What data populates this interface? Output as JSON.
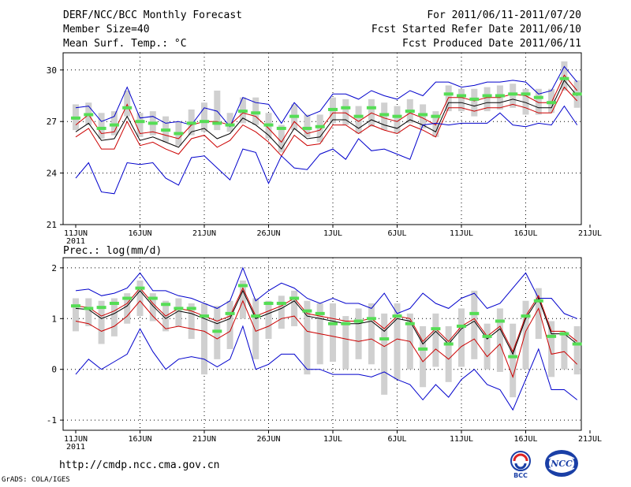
{
  "header": {
    "title": "DERF/NCC/BCC Monthly Forecast",
    "member_size": "Member Size=40",
    "variable_top": "Mean Surf. Temp.: °C",
    "period": "For 2011/06/11-2011/07/20",
    "start_date": "Fcst Started Refer Date 2011/06/10",
    "produced_date": "Fcst Produced Date 2011/06/11"
  },
  "footer": {
    "url": "http://cmdp.ncc.cma.gov.cn",
    "grads": "GrADS: COLA/IGES",
    "logo_bcc": "BCC",
    "logo_ncc": "NCC"
  },
  "colors": {
    "ensemble_mean": "#000000",
    "min_max": "#0000cc",
    "lower": "#cc0000",
    "box": "#d0d0d0",
    "observed": "#55dd55"
  },
  "chart_data": [
    {
      "type": "line",
      "title": "Mean Surf. Temp.: °C",
      "x_tick_labels": [
        "11JUN",
        "16JUN",
        "21JUN",
        "26JUN",
        "1JUL",
        "6JUL",
        "11JUL",
        "16JUL",
        "21JUL"
      ],
      "x_year_label": "2011",
      "ylim": [
        21,
        31
      ],
      "yticks": [
        21,
        24,
        27,
        30
      ],
      "series": [
        {
          "name": "max",
          "values": [
            27.8,
            27.9,
            27.0,
            27.3,
            29.0,
            27.2,
            27.3,
            26.9,
            27.0,
            26.8,
            27.8,
            27.6,
            26.7,
            28.4,
            28.1,
            28.0,
            26.9,
            28.1,
            27.3,
            27.6,
            28.6,
            28.6,
            28.3,
            28.8,
            28.5,
            28.3,
            28.8,
            28.5,
            29.3,
            29.3,
            29.0,
            29.1,
            29.3,
            29.3,
            29.4,
            29.3,
            28.6,
            28.8,
            30.2,
            29.3
          ]
        },
        {
          "name": "upper",
          "values": [
            26.8,
            27.4,
            26.3,
            26.4,
            28.0,
            26.3,
            26.4,
            26.2,
            26.0,
            26.8,
            27.0,
            27.0,
            26.8,
            27.5,
            27.3,
            26.6,
            25.8,
            27.0,
            26.3,
            26.5,
            27.5,
            27.5,
            27.0,
            27.5,
            27.2,
            27.0,
            27.5,
            27.2,
            26.8,
            28.4,
            28.4,
            28.2,
            28.4,
            28.4,
            28.6,
            28.5,
            28.1,
            28.1,
            29.7,
            28.8
          ]
        },
        {
          "name": "mean",
          "values": [
            26.4,
            26.9,
            25.9,
            26.0,
            27.3,
            25.9,
            26.1,
            25.8,
            25.5,
            26.4,
            26.6,
            26.0,
            26.3,
            27.2,
            26.8,
            26.2,
            25.4,
            26.6,
            26.0,
            26.1,
            27.1,
            27.1,
            26.6,
            27.1,
            26.8,
            26.6,
            27.1,
            26.8,
            26.4,
            28.1,
            28.1,
            27.9,
            28.1,
            28.1,
            28.3,
            28.1,
            27.8,
            27.8,
            29.4,
            28.5
          ]
        },
        {
          "name": "lower",
          "values": [
            26.1,
            26.6,
            25.4,
            25.4,
            27.0,
            25.6,
            25.8,
            25.4,
            25.1,
            26.0,
            26.2,
            25.5,
            25.9,
            26.8,
            26.4,
            25.8,
            25.0,
            26.2,
            25.6,
            25.7,
            26.8,
            26.8,
            26.3,
            26.8,
            26.5,
            26.3,
            26.8,
            26.5,
            26.1,
            27.8,
            27.8,
            27.6,
            27.8,
            27.8,
            28.0,
            27.8,
            27.5,
            27.5,
            29.0,
            28.2
          ]
        },
        {
          "name": "min",
          "values": [
            23.7,
            24.6,
            22.9,
            22.8,
            24.6,
            24.5,
            24.6,
            23.7,
            23.3,
            24.9,
            25.0,
            24.3,
            23.6,
            25.4,
            25.2,
            23.4,
            25.0,
            24.3,
            24.2,
            25.1,
            25.4,
            24.8,
            26.0,
            25.3,
            25.4,
            25.1,
            24.8,
            26.8,
            26.9,
            26.8,
            26.9,
            26.9,
            26.9,
            27.5,
            26.8,
            26.7,
            26.9,
            26.8,
            27.9,
            26.8
          ]
        }
      ],
      "observed": [
        27.2,
        27.4,
        26.6,
        26.8,
        27.8,
        27.0,
        26.9,
        26.5,
        26.3,
        26.9,
        27.0,
        26.9,
        26.8,
        27.6,
        27.5,
        26.8,
        26.6,
        27.3,
        26.6,
        26.7,
        27.7,
        27.8,
        27.3,
        27.8,
        27.4,
        27.3,
        27.6,
        27.4,
        27.3,
        28.6,
        28.5,
        28.3,
        28.5,
        28.5,
        28.6,
        28.6,
        28.4,
        28.1,
        29.5,
        28.6
      ],
      "boxes": [
        [
          26.5,
          28.0
        ],
        [
          26.8,
          28.1
        ],
        [
          26.0,
          27.5
        ],
        [
          26.2,
          27.6
        ],
        [
          27.3,
          28.8
        ],
        [
          26.1,
          27.5
        ],
        [
          26.2,
          27.6
        ],
        [
          25.8,
          27.3
        ],
        [
          25.6,
          27.0
        ],
        [
          26.2,
          27.7
        ],
        [
          26.4,
          28.1
        ],
        [
          26.5,
          28.8
        ],
        [
          26.4,
          27.5
        ],
        [
          26.9,
          28.4
        ],
        [
          26.8,
          28.4
        ],
        [
          26.0,
          27.5
        ],
        [
          25.2,
          26.8
        ],
        [
          26.5,
          28.0
        ],
        [
          26.1,
          27.4
        ],
        [
          25.8,
          27.4
        ],
        [
          26.9,
          28.4
        ],
        [
          26.8,
          28.3
        ],
        [
          26.3,
          27.9
        ],
        [
          26.7,
          28.3
        ],
        [
          26.5,
          28.1
        ],
        [
          26.3,
          27.9
        ],
        [
          26.9,
          28.3
        ],
        [
          26.6,
          28.0
        ],
        [
          26.1,
          27.6
        ],
        [
          27.6,
          29.1
        ],
        [
          27.6,
          28.9
        ],
        [
          27.3,
          28.9
        ],
        [
          27.6,
          29.0
        ],
        [
          27.7,
          29.1
        ],
        [
          27.8,
          29.2
        ],
        [
          27.4,
          28.9
        ],
        [
          27.4,
          28.9
        ],
        [
          27.5,
          28.9
        ],
        [
          28.8,
          30.5
        ],
        [
          27.8,
          29.4
        ]
      ]
    },
    {
      "type": "line",
      "title": "Prec.: log(mm/d)",
      "x_tick_labels": [
        "11JUN",
        "16JUN",
        "21JUN",
        "26JUN",
        "1JUL",
        "6JUL",
        "11JUL",
        "16JUL",
        "21JUL"
      ],
      "x_year_label": "2011",
      "ylim": [
        -1.2,
        2.2
      ],
      "yticks": [
        -1,
        0,
        1,
        2
      ],
      "series": [
        {
          "name": "max",
          "values": [
            1.55,
            1.58,
            1.45,
            1.5,
            1.6,
            1.9,
            1.55,
            1.55,
            1.45,
            1.4,
            1.3,
            1.2,
            1.35,
            2.0,
            1.35,
            1.55,
            1.7,
            1.6,
            1.4,
            1.3,
            1.4,
            1.3,
            1.3,
            1.2,
            1.5,
            1.1,
            1.2,
            1.5,
            1.3,
            1.2,
            1.4,
            1.5,
            1.2,
            1.3,
            1.6,
            1.9,
            1.4,
            1.4,
            1.1,
            1.0
          ]
        },
        {
          "name": "upper",
          "values": [
            1.25,
            1.22,
            1.05,
            1.15,
            1.3,
            1.6,
            1.3,
            1.05,
            1.2,
            1.15,
            1.05,
            0.95,
            1.05,
            1.6,
            1.05,
            1.15,
            1.25,
            1.4,
            1.1,
            1.05,
            1.0,
            0.95,
            0.95,
            1.0,
            0.8,
            1.05,
            1.0,
            0.55,
            0.8,
            0.55,
            0.85,
            1.0,
            0.65,
            0.85,
            0.35,
            1.05,
            1.45,
            0.75,
            0.75,
            0.55
          ]
        },
        {
          "name": "mean",
          "values": [
            1.2,
            1.18,
            1.0,
            1.1,
            1.25,
            1.55,
            1.25,
            1.0,
            1.15,
            1.1,
            1.0,
            0.9,
            1.0,
            1.55,
            1.0,
            1.1,
            1.2,
            1.35,
            1.05,
            1.0,
            0.95,
            0.9,
            0.9,
            0.95,
            0.75,
            1.0,
            0.95,
            0.5,
            0.75,
            0.5,
            0.8,
            0.95,
            0.6,
            0.8,
            0.3,
            1.0,
            1.4,
            0.7,
            0.7,
            0.5
          ]
        },
        {
          "name": "lower",
          "values": [
            0.95,
            0.9,
            0.75,
            0.85,
            1.05,
            1.35,
            1.05,
            0.8,
            0.85,
            0.8,
            0.75,
            0.6,
            0.75,
            1.35,
            0.75,
            0.85,
            1.0,
            1.05,
            0.75,
            0.7,
            0.65,
            0.6,
            0.55,
            0.6,
            0.45,
            0.6,
            0.55,
            0.15,
            0.4,
            0.2,
            0.45,
            0.6,
            0.25,
            0.5,
            -0.15,
            0.75,
            1.2,
            0.3,
            0.35,
            0.1
          ]
        },
        {
          "name": "min",
          "values": [
            -0.1,
            0.2,
            0.0,
            0.15,
            0.3,
            0.8,
            0.35,
            0.0,
            0.2,
            0.25,
            0.2,
            0.05,
            0.2,
            0.85,
            0.0,
            0.1,
            0.3,
            0.3,
            0.0,
            0.0,
            -0.1,
            -0.1,
            -0.1,
            -0.15,
            -0.05,
            -0.2,
            -0.3,
            -0.6,
            -0.3,
            -0.55,
            -0.2,
            0.0,
            -0.3,
            -0.4,
            -0.8,
            -0.2,
            0.4,
            -0.4,
            -0.4,
            -0.6
          ]
        }
      ],
      "observed": [
        1.25,
        1.2,
        1.22,
        1.3,
        1.4,
        1.6,
        1.4,
        1.28,
        1.2,
        1.2,
        1.05,
        0.75,
        1.1,
        1.65,
        1.05,
        1.3,
        1.3,
        1.4,
        1.15,
        1.1,
        0.9,
        0.9,
        0.95,
        1.0,
        0.6,
        1.05,
        0.9,
        0.4,
        0.8,
        0.5,
        0.85,
        1.1,
        0.65,
        0.95,
        0.25,
        1.05,
        1.35,
        0.65,
        0.7,
        0.5
      ],
      "boxes": [
        [
          0.75,
          1.4
        ],
        [
          0.85,
          1.4
        ],
        [
          0.5,
          1.35
        ],
        [
          0.65,
          1.4
        ],
        [
          0.9,
          1.5
        ],
        [
          1.05,
          1.75
        ],
        [
          0.95,
          1.5
        ],
        [
          0.75,
          1.35
        ],
        [
          0.85,
          1.4
        ],
        [
          0.6,
          1.3
        ],
        [
          -0.1,
          1.3
        ],
        [
          0.2,
          1.25
        ],
        [
          0.4,
          1.35
        ],
        [
          1.0,
          1.75
        ],
        [
          0.2,
          1.4
        ],
        [
          0.6,
          1.35
        ],
        [
          0.8,
          1.45
        ],
        [
          0.85,
          1.55
        ],
        [
          -0.1,
          1.35
        ],
        [
          0.1,
          1.3
        ],
        [
          0.15,
          1.3
        ],
        [
          0.0,
          1.05
        ],
        [
          0.2,
          1.2
        ],
        [
          0.1,
          1.3
        ],
        [
          -0.5,
          1.1
        ],
        [
          -0.2,
          1.3
        ],
        [
          0.0,
          1.1
        ],
        [
          -0.35,
          0.85
        ],
        [
          0.05,
          1.1
        ],
        [
          -0.25,
          0.85
        ],
        [
          0.05,
          1.2
        ],
        [
          0.2,
          1.55
        ],
        [
          0.0,
          0.9
        ],
        [
          -0.05,
          1.2
        ],
        [
          -0.55,
          0.9
        ],
        [
          0.0,
          1.35
        ],
        [
          0.6,
          1.6
        ],
        [
          -0.15,
          0.95
        ],
        [
          0.0,
          0.75
        ],
        [
          -0.1,
          0.85
        ]
      ]
    }
  ]
}
